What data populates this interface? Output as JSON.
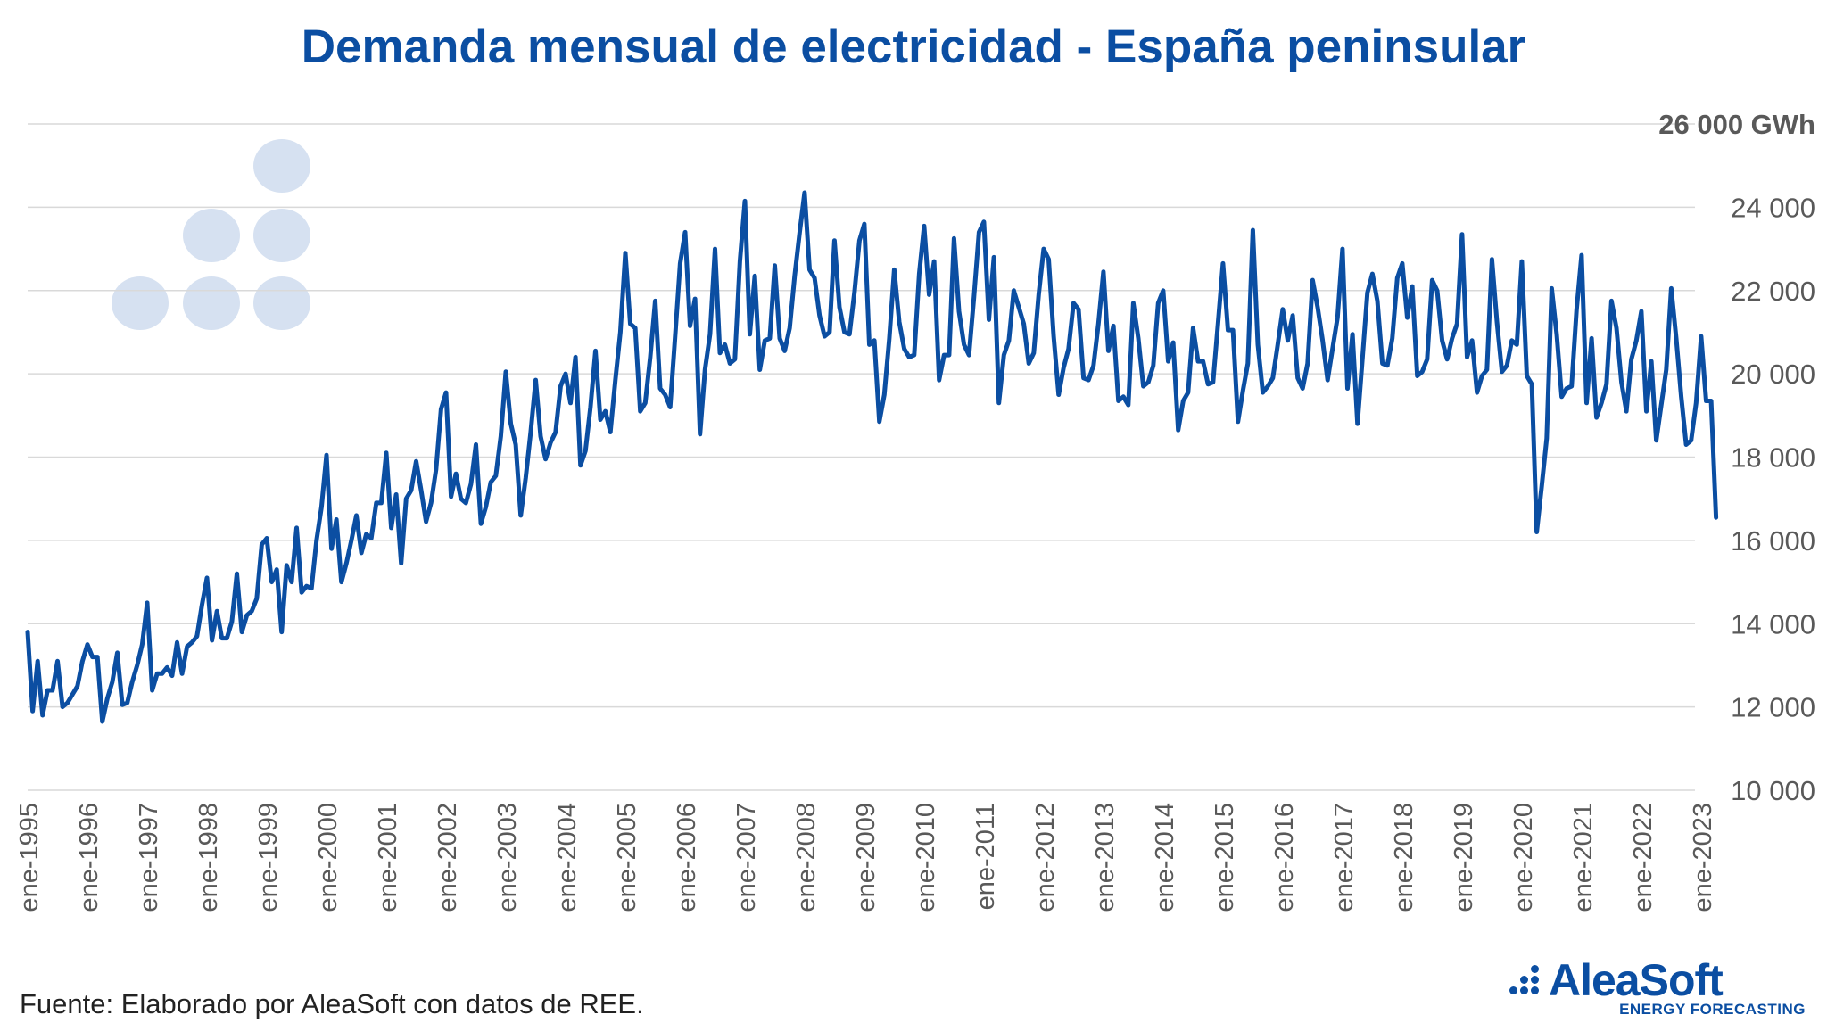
{
  "chart_data": {
    "type": "line",
    "title": "Demanda mensual de electricidad - España peninsular",
    "ylabel": "",
    "xlabel": "",
    "y_unit": "GWh",
    "ylim": [
      10000,
      26000
    ],
    "y_ticks": [
      {
        "value": 10000,
        "label": "10 000"
      },
      {
        "value": 12000,
        "label": "12 000"
      },
      {
        "value": 14000,
        "label": "14 000"
      },
      {
        "value": 16000,
        "label": "16 000"
      },
      {
        "value": 18000,
        "label": "18 000"
      },
      {
        "value": 20000,
        "label": "20 000"
      },
      {
        "value": 22000,
        "label": "22 000"
      },
      {
        "value": 24000,
        "label": "24 000"
      },
      {
        "value": 26000,
        "label": "26 000 GWh"
      }
    ],
    "x_ticks": [
      "ene-1995",
      "ene-1996",
      "ene-1997",
      "ene-1998",
      "ene-1999",
      "ene-2000",
      "ene-2001",
      "ene-2002",
      "ene-2003",
      "ene-2004",
      "ene-2005",
      "ene-2006",
      "ene-2007",
      "ene-2008",
      "ene-2009",
      "ene-2010",
      "ene-2011",
      "ene-2012",
      "ene-2013",
      "ene-2014",
      "ene-2015",
      "ene-2016",
      "ene-2017",
      "ene-2018",
      "ene-2019",
      "ene-2020",
      "ene-2021",
      "ene-2022",
      "ene-2023"
    ],
    "grid": true,
    "legend": "none",
    "colors": {
      "line": "#0B4EA2",
      "grid": "#D9D9D9",
      "axis_text": "#595959",
      "title": "#0B4EA2"
    },
    "x_start": "ene-1995",
    "series": [
      {
        "frequency": "monthly",
        "values": [
          13800,
          11900,
          13100,
          11800,
          12400,
          12400,
          13100,
          12000,
          12100,
          12300,
          12500,
          13100,
          13500,
          13200,
          13200,
          11650,
          12200,
          12600,
          13300,
          12050,
          12100,
          12600,
          13000,
          13500,
          14500,
          12400,
          12800,
          12800,
          12950,
          12750,
          13550,
          12800,
          13450,
          13550,
          13700,
          14450,
          15100,
          13600,
          14300,
          13650,
          13650,
          14050,
          15200,
          13800,
          14200,
          14300,
          14600,
          15900,
          16050,
          15000,
          15300,
          13800,
          15400,
          15000,
          16300,
          14750,
          14900,
          14850,
          16000,
          16800,
          18050,
          15800,
          16500,
          15000,
          15450,
          16000,
          16600,
          15700,
          16150,
          16050,
          16900,
          16900,
          18100,
          16300,
          17100,
          15450,
          17000,
          17200,
          17900,
          17200,
          16450,
          16900,
          17700,
          19150,
          19550,
          17050,
          17600,
          17000,
          16900,
          17350,
          18300,
          16400,
          16800,
          17400,
          17550,
          18500,
          20050,
          18800,
          18300,
          16600,
          17500,
          18600,
          19850,
          18500,
          17950,
          18350,
          18600,
          19700,
          20000,
          19300,
          20400,
          17800,
          18150,
          19200,
          20550,
          18900,
          19100,
          18600,
          19850,
          21000,
          22900,
          21200,
          21100,
          19100,
          19300,
          20400,
          21750,
          19650,
          19500,
          19200,
          20900,
          22650,
          23400,
          21150,
          21800,
          18550,
          20100,
          20950,
          23000,
          20500,
          20700,
          20250,
          20350,
          22700,
          24150,
          20950,
          22350,
          20100,
          20800,
          20850,
          22600,
          20850,
          20550,
          21100,
          22350,
          23400,
          24350,
          22500,
          22300,
          21400,
          20900,
          21000,
          23200,
          21600,
          21000,
          20950,
          21950,
          23200,
          23600,
          20700,
          20800,
          18850,
          19500,
          20850,
          22500,
          21250,
          20600,
          20400,
          20450,
          22400,
          23550,
          21900,
          22700,
          19850,
          20450,
          20450,
          23250,
          21500,
          20700,
          20450,
          21850,
          23400,
          23650,
          21300,
          22800,
          19300,
          20450,
          20800,
          22000,
          21600,
          21200,
          20250,
          20500,
          21900,
          23000,
          22750,
          20900,
          19500,
          20150,
          20600,
          21700,
          21550,
          19900,
          19850,
          20200,
          21200,
          22450,
          20550,
          21150,
          19350,
          19450,
          19250,
          21700,
          20850,
          19700,
          19800,
          20200,
          21700,
          22000,
          20300,
          20750,
          18650,
          19350,
          19550,
          21100,
          20300,
          20300,
          19750,
          19800,
          21200,
          22650,
          21050,
          21050,
          18850,
          19600,
          20250,
          23450,
          20700,
          19550,
          19700,
          19900,
          20700,
          21550,
          20800,
          21400,
          19900,
          19650,
          20250,
          22250,
          21600,
          20800,
          19850,
          20600,
          21350,
          23000,
          19650,
          20950,
          18800,
          20350,
          21950,
          22400,
          21750,
          20250,
          20200,
          20850,
          22300,
          22650,
          21350,
          22100,
          19950,
          20050,
          20350,
          22250,
          22000,
          20800,
          20350,
          20850,
          21200,
          23350,
          20400,
          20800,
          19550,
          19950,
          20100,
          22750,
          21250,
          20050,
          20200,
          20800,
          20700,
          22700,
          19950,
          19750,
          16200,
          17300,
          18450,
          22050,
          20950,
          19450,
          19650,
          19700,
          21550,
          22850,
          19300,
          20850,
          18950,
          19300,
          19750,
          21750,
          21100,
          19800,
          19100,
          20350,
          20800,
          21500,
          19100,
          20300,
          18400,
          19250,
          20100,
          22050,
          20850,
          19450,
          18300,
          18400,
          19300,
          20900,
          19350,
          19350,
          16550
        ]
      }
    ]
  },
  "source": "Fuente: Elaborado por AleaSoft con datos de REE.",
  "logo": {
    "name": "AleaSoft",
    "tagline": "ENERGY FORECASTING"
  }
}
